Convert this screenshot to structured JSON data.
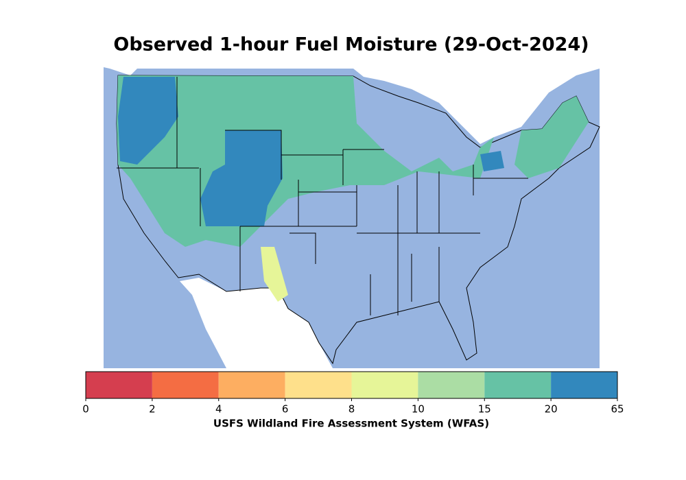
{
  "title": "Observed 1-hour Fuel Moisture (29-Oct-2024)",
  "colorbar": {
    "ticks": [
      0,
      2,
      4,
      6,
      8,
      10,
      15,
      20,
      65
    ],
    "colors": [
      "#d53e4f",
      "#f46d43",
      "#fdae61",
      "#fee08b",
      "#e6f598",
      "#abdda4",
      "#66c2a5",
      "#3288bd"
    ],
    "label": "USFS Wildland Fire Assessment System (WFAS)"
  }
}
